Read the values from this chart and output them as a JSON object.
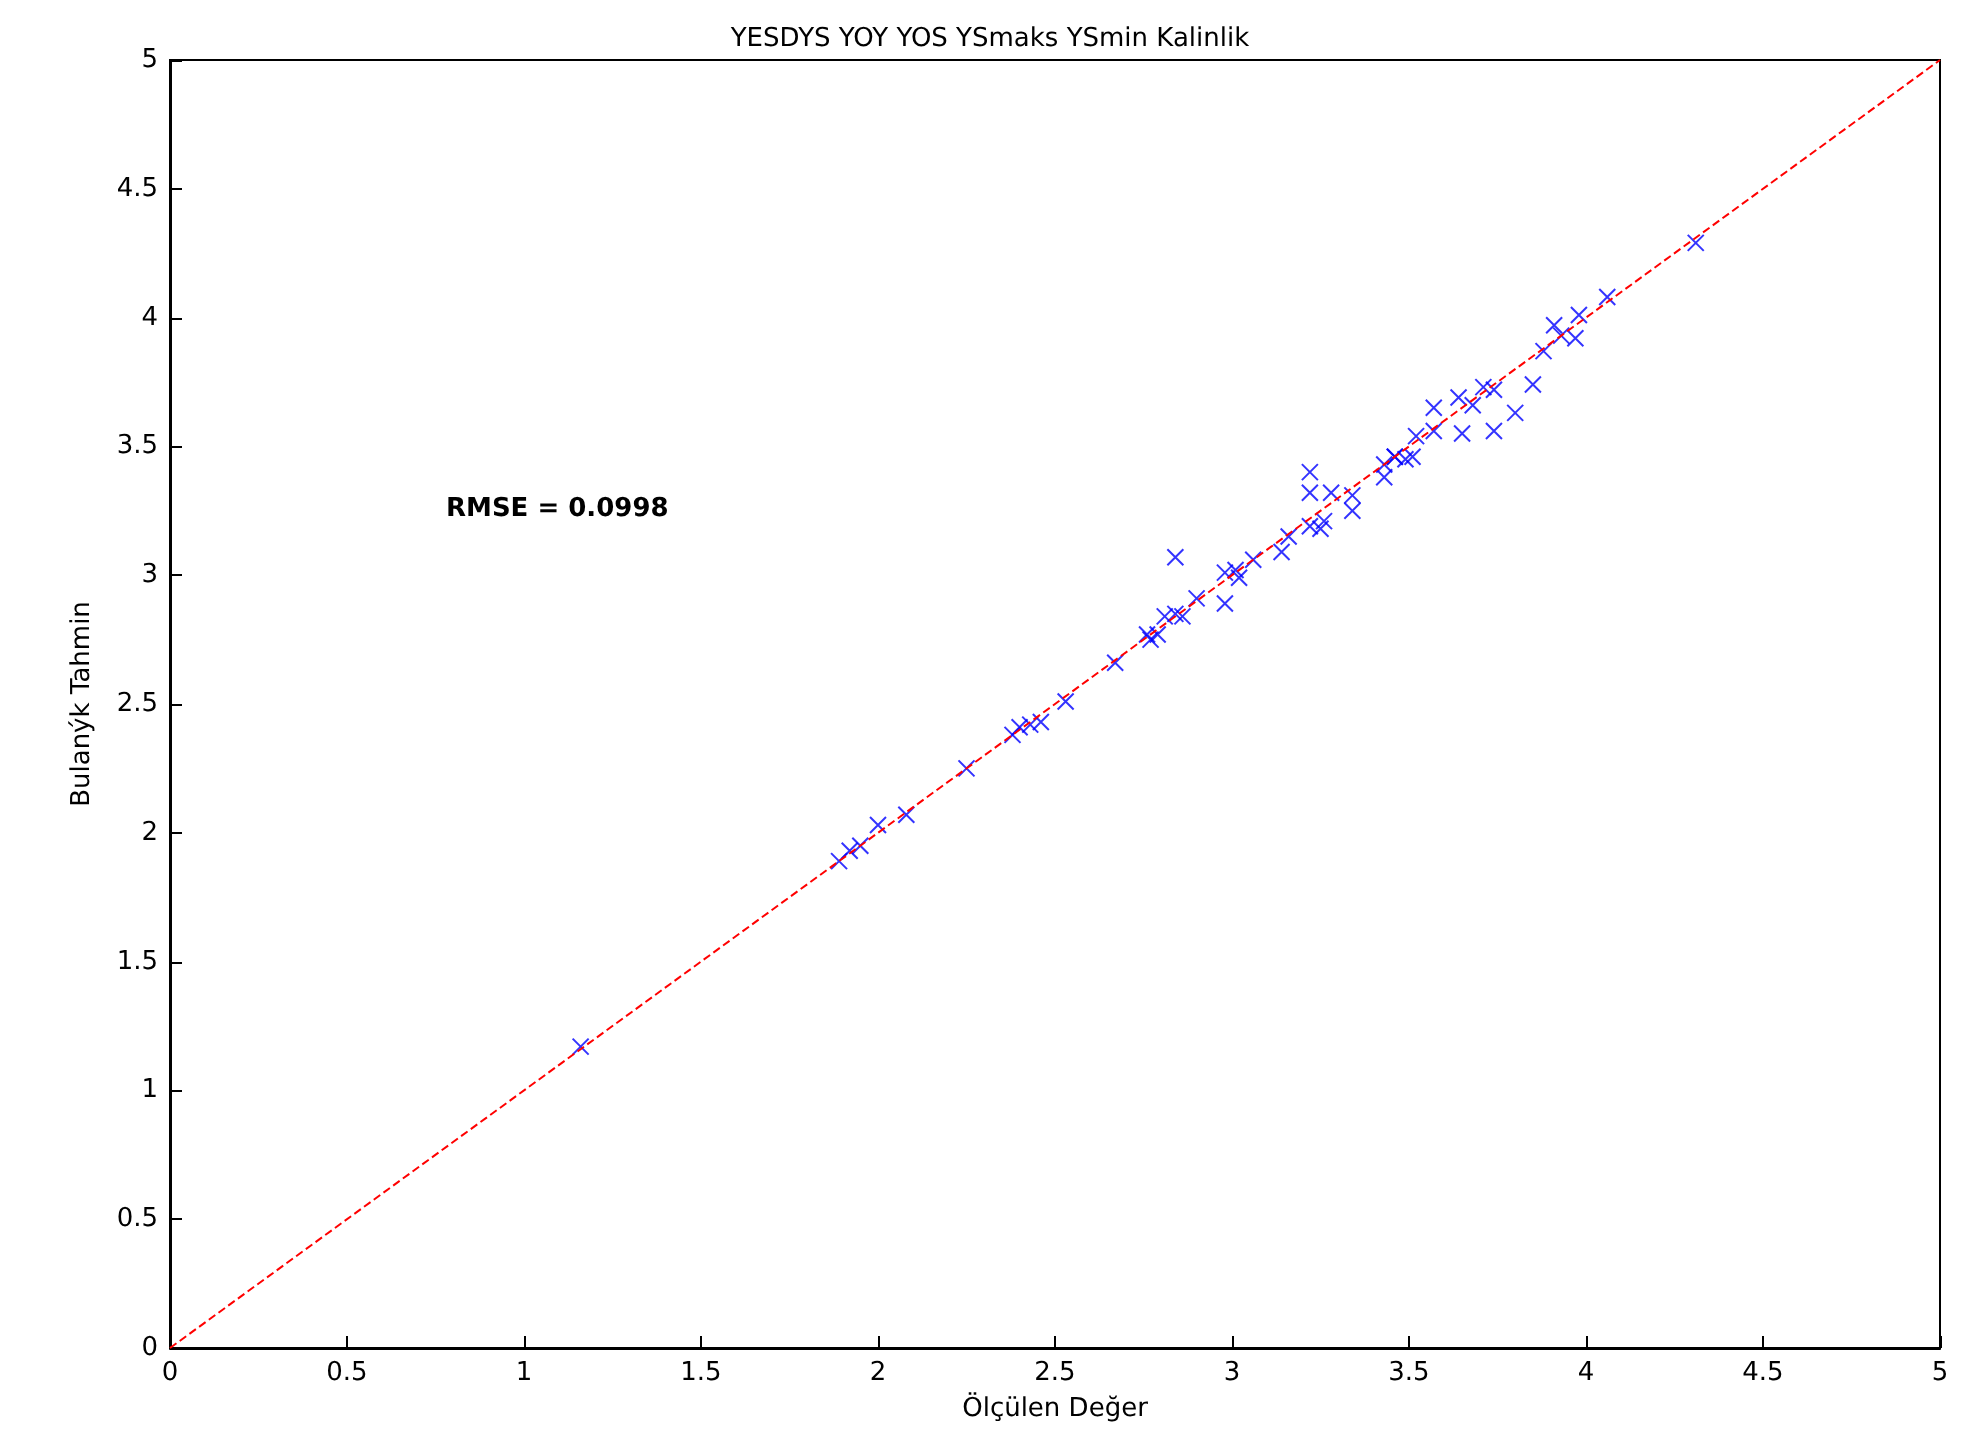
{
  "chart_data": {
    "type": "scatter",
    "title": "YESDYS YOY YOS YSmaks YSmin Kalinlik",
    "xlabel": "Ölçülen Değer",
    "ylabel": "Bulanýk Tahmin",
    "annotations": [
      "RMSE = 0.0998"
    ],
    "xlim": [
      0,
      5
    ],
    "ylim": [
      0,
      5
    ],
    "xticks": [
      0,
      0.5,
      1,
      1.5,
      2,
      2.5,
      3,
      3.5,
      4,
      4.5,
      5
    ],
    "yticks": [
      0,
      0.5,
      1,
      1.5,
      2,
      2.5,
      3,
      3.5,
      4,
      4.5,
      5
    ],
    "grid": false,
    "marker": "cross",
    "series": [
      {
        "color": "#0000ff",
        "x": [
          1.16,
          1.89,
          1.92,
          1.95,
          2.0,
          2.08,
          2.25,
          2.38,
          2.4,
          2.43,
          2.46,
          2.53,
          2.67,
          2.76,
          2.77,
          2.79,
          2.81,
          2.84,
          2.86,
          2.9,
          2.84,
          2.98,
          2.98,
          3.01,
          3.02,
          3.06,
          3.14,
          3.16,
          3.22,
          3.25,
          3.26,
          3.22,
          3.22,
          3.28,
          3.34,
          3.34,
          3.43,
          3.43,
          3.46,
          3.49,
          3.51,
          3.46,
          3.52,
          3.57,
          3.57,
          3.65,
          3.74,
          3.64,
          3.68,
          3.71,
          3.74,
          3.8,
          3.85,
          3.88,
          3.91,
          3.93,
          3.97,
          3.98,
          4.06,
          4.31
        ],
        "values": [
          1.17,
          1.89,
          1.93,
          1.95,
          2.03,
          2.07,
          2.25,
          2.38,
          2.41,
          2.42,
          2.43,
          2.51,
          2.66,
          2.77,
          2.75,
          2.77,
          2.84,
          2.85,
          2.84,
          2.91,
          3.07,
          2.89,
          3.01,
          3.02,
          2.99,
          3.06,
          3.09,
          3.15,
          3.19,
          3.18,
          3.21,
          3.4,
          3.32,
          3.32,
          3.31,
          3.25,
          3.38,
          3.43,
          3.46,
          3.45,
          3.46,
          3.46,
          3.54,
          3.56,
          3.65,
          3.55,
          3.56,
          3.69,
          3.66,
          3.73,
          3.72,
          3.63,
          3.74,
          3.87,
          3.97,
          3.93,
          3.92,
          4.01,
          4.08,
          4.29
        ]
      },
      {
        "type": "line",
        "color": "#ff0000",
        "line_style": "dashed",
        "marker": "none",
        "x": [
          0,
          5
        ],
        "values": [
          0,
          5
        ]
      }
    ]
  }
}
